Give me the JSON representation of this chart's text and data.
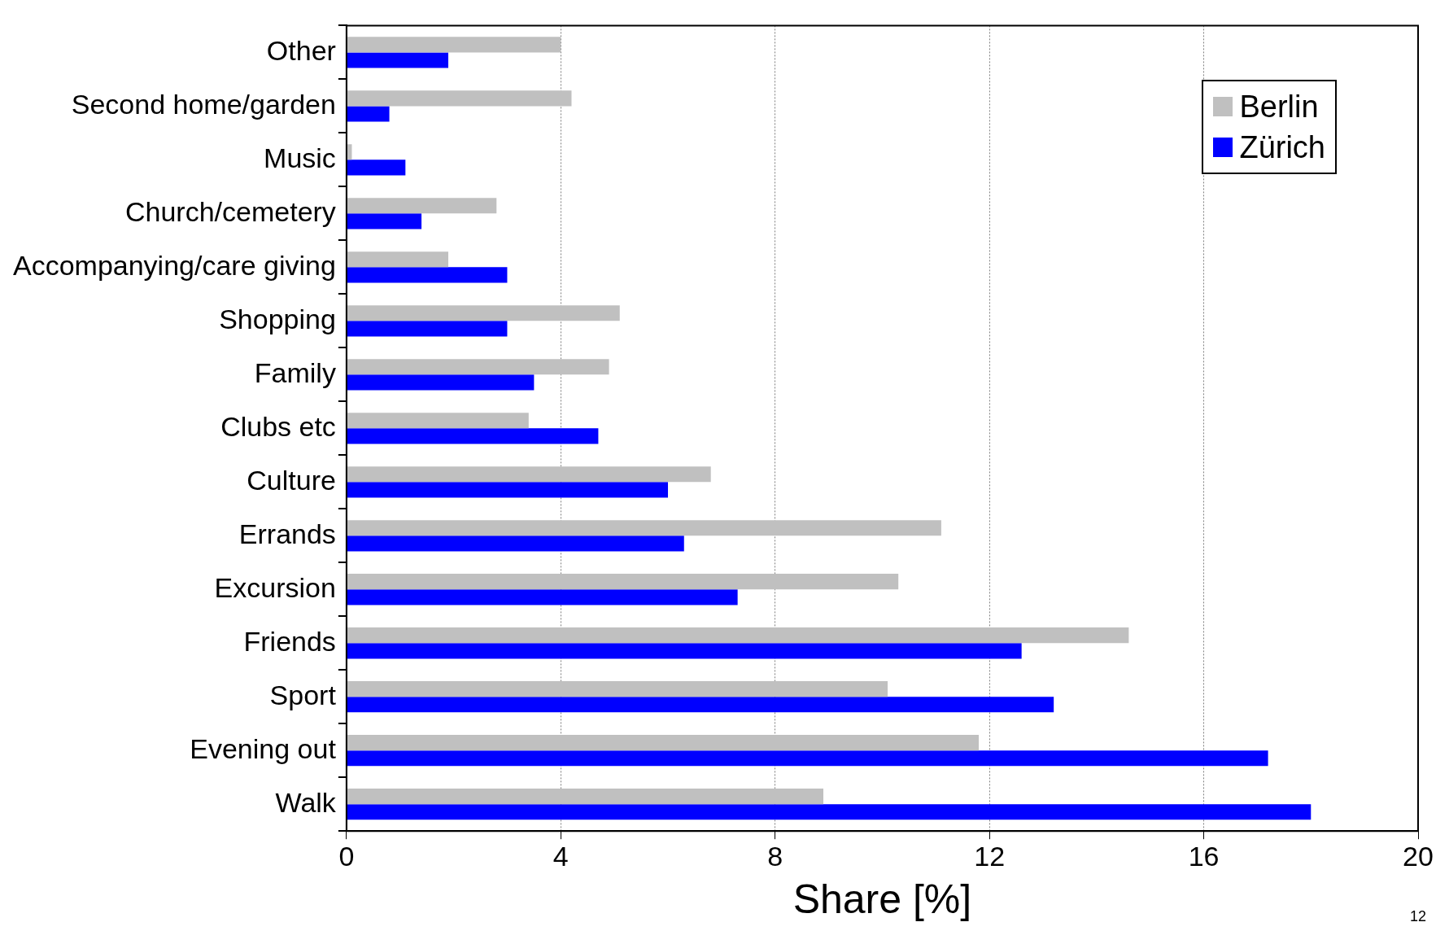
{
  "chart_data": {
    "type": "bar",
    "orientation": "horizontal",
    "xlabel": "Share [%]",
    "categories": [
      "Other",
      "Second home/garden",
      "Music",
      "Church/cemetery",
      "Accompanying/care giving",
      "Shopping",
      "Family",
      "Clubs etc",
      "Culture",
      "Errands",
      "Excursion",
      "Friends",
      "Sport",
      "Evening out",
      "Walk"
    ],
    "series": [
      {
        "name": "Berlin",
        "color": "#c0c0c0",
        "values": [
          4.0,
          4.2,
          0.1,
          2.8,
          1.9,
          5.1,
          4.9,
          3.4,
          6.8,
          11.1,
          10.3,
          14.6,
          10.1,
          11.8,
          8.9
        ]
      },
      {
        "name": "Zürich",
        "color": "#0000ff",
        "values": [
          1.9,
          0.8,
          1.1,
          1.4,
          3.0,
          3.0,
          3.5,
          4.7,
          6.0,
          6.3,
          7.3,
          12.6,
          13.2,
          17.2,
          18.0
        ]
      }
    ],
    "xlim": [
      0,
      20
    ],
    "xticks": [
      0,
      4,
      8,
      12,
      16,
      20
    ],
    "grid": "x",
    "legend": "top right",
    "annotations": [
      "12"
    ]
  }
}
